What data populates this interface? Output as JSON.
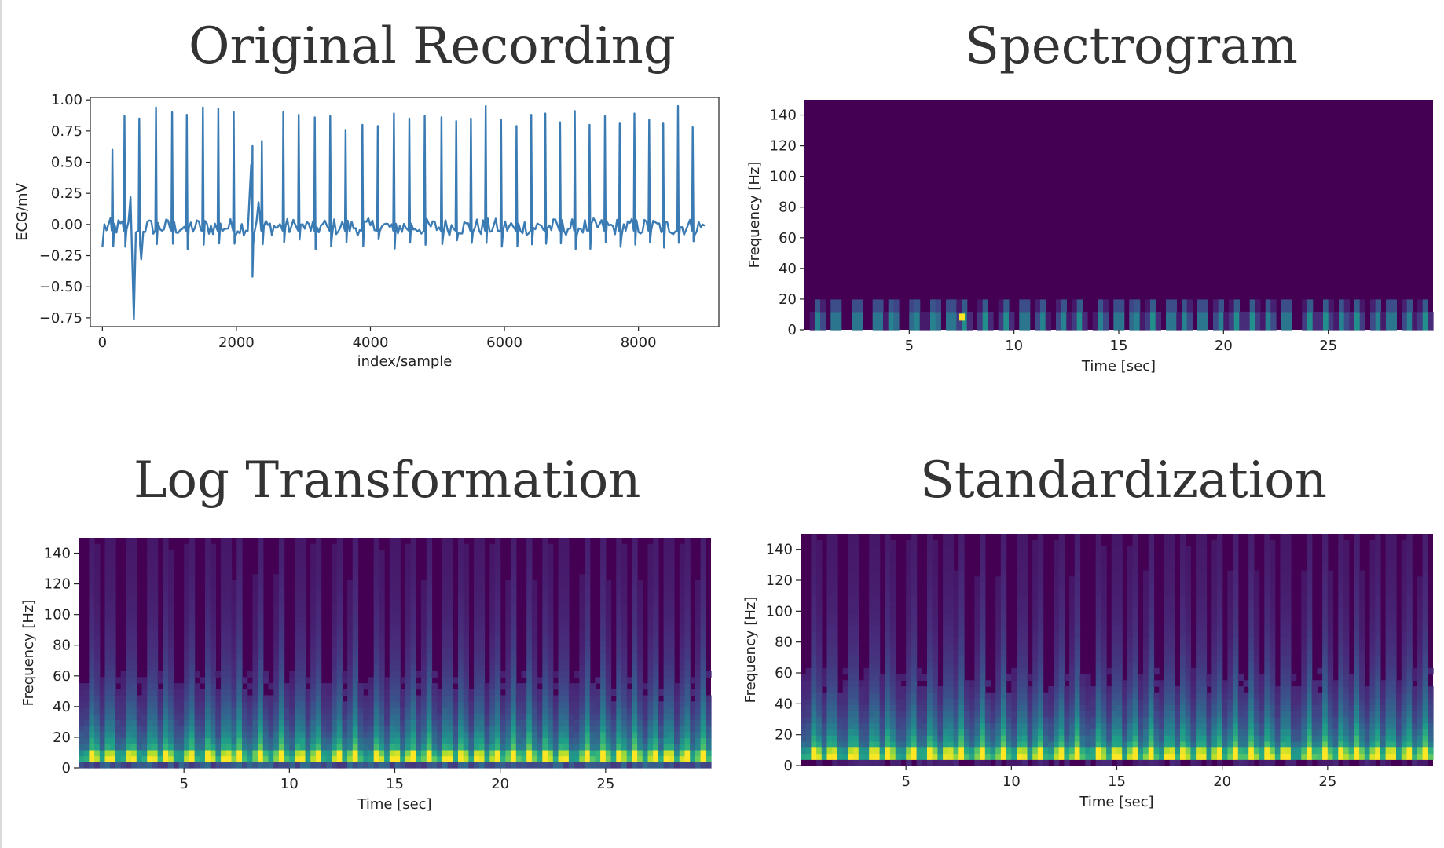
{
  "colors": {
    "line": "#3b7bb4",
    "viridis_low": "#440154",
    "viridis_mid": "#21918c",
    "viridis_high": "#fde725",
    "axis": "#222222",
    "title": "#333333"
  },
  "chart_data": [
    {
      "id": "original",
      "type": "line",
      "title": "Original Recording",
      "xlabel": "index/sample",
      "ylabel": "ECG/mV",
      "xlim": [
        -180,
        9200
      ],
      "ylim": [
        -0.82,
        1.02
      ],
      "xticks": [
        0,
        2000,
        4000,
        6000,
        8000
      ],
      "xtick_labels": [
        "0",
        "2000",
        "4000",
        "6000",
        "8000"
      ],
      "yticks": [
        1.0,
        0.75,
        0.5,
        0.25,
        0.0,
        -0.25,
        -0.5,
        -0.75
      ],
      "ytick_labels": [
        "1.00",
        "0.75",
        "0.50",
        "0.25",
        "0.00",
        "−0.25",
        "−0.50",
        "−0.75"
      ],
      "grid": false,
      "series": [
        {
          "x_range": [
            0,
            9000
          ],
          "r_peaks_x": [
            150,
            330,
            550,
            800,
            1040,
            1260,
            1500,
            1730,
            1960,
            2240,
            2380,
            2700,
            2930,
            3170,
            3400,
            3630,
            3880,
            4110,
            4350,
            4580,
            4810,
            5060,
            5280,
            5500,
            5720,
            5950,
            6180,
            6400,
            6610,
            6830,
            7050,
            7270,
            7500,
            7720,
            7940,
            8160,
            8370,
            8590,
            8810
          ],
          "r_peaks_y": [
            0.6,
            0.87,
            0.85,
            0.94,
            0.9,
            0.88,
            0.94,
            0.93,
            0.9,
            0.63,
            0.67,
            0.9,
            0.88,
            0.86,
            0.87,
            0.76,
            0.8,
            0.79,
            0.89,
            0.85,
            0.87,
            0.86,
            0.83,
            0.85,
            0.95,
            0.84,
            0.79,
            0.88,
            0.89,
            0.82,
            0.91,
            0.8,
            0.87,
            0.81,
            0.89,
            0.84,
            0.81,
            0.95,
            0.78
          ],
          "artifacts": [
            {
              "x": 420,
              "y": 0.22
            },
            {
              "x": 470,
              "y": -0.76
            },
            {
              "x": 580,
              "y": -0.28
            },
            {
              "x": 2220,
              "y": 0.48
            },
            {
              "x": 2240,
              "y": -0.42
            },
            {
              "x": 2330,
              "y": 0.18
            }
          ]
        }
      ]
    },
    {
      "id": "spectrogram",
      "type": "heatmap",
      "title": "Spectrogram",
      "xlabel": "Time [sec]",
      "ylabel": "Frequency [Hz]",
      "xlim": [
        0,
        30
      ],
      "ylim": [
        0,
        150
      ],
      "xticks": [
        5,
        10,
        15,
        20,
        25
      ],
      "xtick_labels": [
        "5",
        "10",
        "15",
        "20",
        "25"
      ],
      "yticks": [
        0,
        20,
        40,
        60,
        80,
        100,
        120,
        140
      ],
      "ytick_labels": [
        "0",
        "20",
        "40",
        "60",
        "80",
        "100",
        "120",
        "140"
      ],
      "colormap": "viridis",
      "scale": "linear",
      "beat_times": [
        0.7,
        1.5,
        2.5,
        3.5,
        4.2,
        5.3,
        6.2,
        7.0,
        7.6,
        8.6,
        9.6,
        10.5,
        11.3,
        12.3,
        13.1,
        14.2,
        15.0,
        15.8,
        16.6,
        17.5,
        18.2,
        19.0,
        19.8,
        20.6,
        21.4,
        22.2,
        23.0,
        24.1,
        24.9,
        25.7,
        26.4,
        27.3,
        28.0,
        28.8,
        29.6
      ],
      "hotspot": {
        "time": 7.5,
        "freq": 8
      }
    },
    {
      "id": "log",
      "type": "heatmap",
      "title": "Log Transformation",
      "xlabel": "Time [sec]",
      "ylabel": "Frequency [Hz]",
      "xlim": [
        0,
        30
      ],
      "ylim": [
        0,
        150
      ],
      "xticks": [
        5,
        10,
        15,
        20,
        25
      ],
      "xtick_labels": [
        "5",
        "10",
        "15",
        "20",
        "25"
      ],
      "yticks": [
        0,
        20,
        40,
        60,
        80,
        100,
        120,
        140
      ],
      "ytick_labels": [
        "0",
        "20",
        "40",
        "60",
        "80",
        "100",
        "120",
        "140"
      ],
      "colormap": "viridis",
      "scale": "log",
      "beat_times": [
        0.7,
        1.5,
        2.5,
        3.5,
        4.2,
        5.3,
        6.2,
        7.0,
        7.6,
        8.6,
        9.6,
        10.5,
        11.3,
        12.3,
        13.1,
        14.2,
        15.0,
        15.8,
        16.6,
        17.5,
        18.2,
        19.0,
        19.8,
        20.6,
        21.4,
        22.2,
        23.0,
        24.1,
        24.9,
        25.7,
        26.4,
        27.3,
        28.0,
        28.8,
        29.6
      ]
    },
    {
      "id": "standardized",
      "type": "heatmap",
      "title": "Standardization",
      "xlabel": "Time [sec]",
      "ylabel": "Frequency [Hz]",
      "xlim": [
        0,
        30
      ],
      "ylim": [
        0,
        150
      ],
      "xticks": [
        5,
        10,
        15,
        20,
        25
      ],
      "xtick_labels": [
        "5",
        "10",
        "15",
        "20",
        "25"
      ],
      "yticks": [
        0,
        20,
        40,
        60,
        80,
        100,
        120,
        140
      ],
      "ytick_labels": [
        "0",
        "20",
        "40",
        "60",
        "80",
        "100",
        "120",
        "140"
      ],
      "colormap": "viridis",
      "scale": "standardized",
      "beat_times": [
        0.7,
        1.5,
        2.5,
        3.5,
        4.2,
        5.3,
        6.2,
        7.0,
        7.6,
        8.6,
        9.6,
        10.5,
        11.3,
        12.3,
        13.1,
        14.2,
        15.0,
        15.8,
        16.6,
        17.5,
        18.2,
        19.0,
        19.8,
        20.6,
        21.4,
        22.2,
        23.0,
        24.1,
        24.9,
        25.7,
        26.4,
        27.3,
        28.0,
        28.8,
        29.6
      ]
    }
  ]
}
